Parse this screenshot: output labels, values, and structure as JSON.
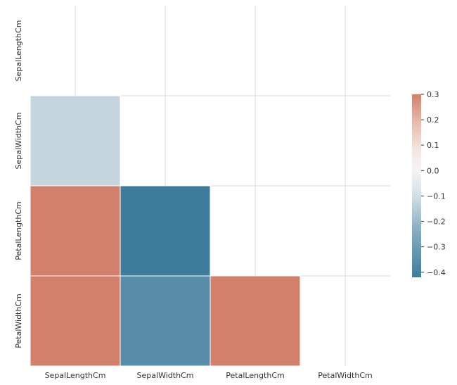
{
  "chart_data": {
    "type": "heatmap",
    "title": "",
    "xlabel": "",
    "ylabel": "",
    "variables": [
      "SepalLengthCm",
      "SepalWidthCm",
      "PetalLengthCm",
      "PetalWidthCm"
    ],
    "mask": "upper-triangle-including-diagonal",
    "cells": [
      {
        "row": "SepalWidthCm",
        "col": "SepalLengthCm",
        "value": -0.11
      },
      {
        "row": "PetalLengthCm",
        "col": "SepalLengthCm",
        "value": 0.87
      },
      {
        "row": "PetalLengthCm",
        "col": "SepalWidthCm",
        "value": -0.42
      },
      {
        "row": "PetalWidthCm",
        "col": "SepalLengthCm",
        "value": 0.82
      },
      {
        "row": "PetalWidthCm",
        "col": "SepalWidthCm",
        "value": -0.36
      },
      {
        "row": "PetalWidthCm",
        "col": "PetalLengthCm",
        "value": 0.96
      }
    ],
    "colorbar": {
      "vmin": -0.42,
      "vmax": 0.3,
      "ticks": [
        0.3,
        0.2,
        0.1,
        0.0,
        -0.1,
        -0.2,
        -0.3,
        -0.4
      ],
      "tick_labels": [
        "0.3",
        "0.2",
        "0.1",
        "0.0",
        "−0.1",
        "−0.2",
        "−0.3",
        "−0.4"
      ]
    },
    "colormap": {
      "negative": "#3d7c9b",
      "center": "#f5f5f5",
      "positive": "#d2806b"
    },
    "grid": true,
    "legend": "colorbar-right"
  }
}
